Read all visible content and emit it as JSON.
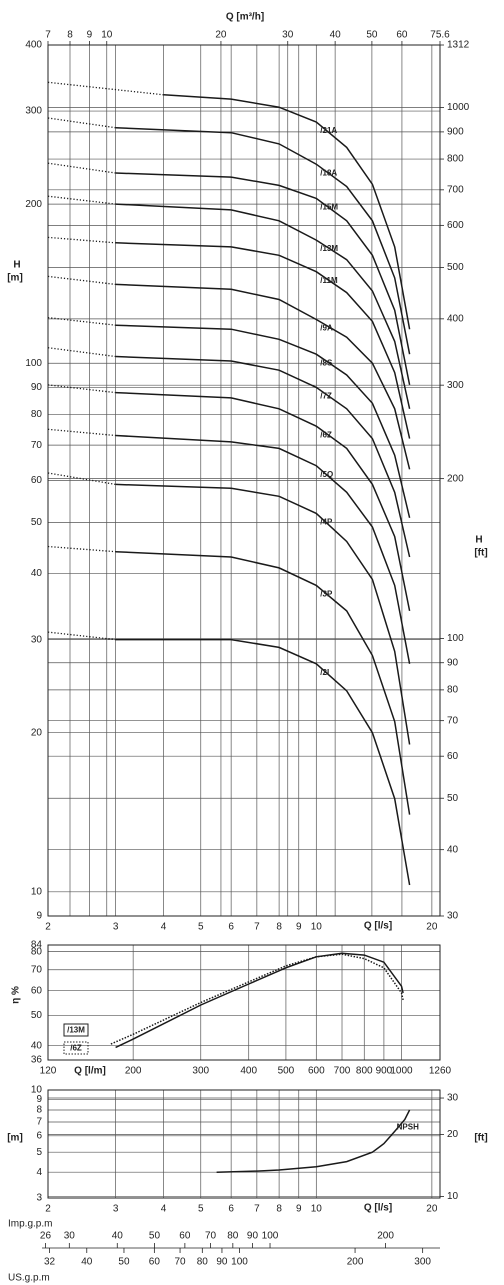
{
  "chart_data": [
    {
      "type": "line",
      "log_scale": true,
      "grid": true,
      "color": "#1a1a1a",
      "x_label": "Q [l/s]",
      "x2_label": "Q [m³/h]",
      "y_label": "H",
      "y_units": "[m]",
      "y2_label": "H",
      "y2_units": "[ft]",
      "xlim": [
        2,
        21
      ],
      "xticks": [
        2,
        3,
        4,
        5,
        6,
        7,
        8,
        9,
        10,
        20
      ],
      "x2lim": [
        7,
        75.6
      ],
      "x2ticks": [
        7,
        8,
        9,
        10,
        20,
        30,
        40,
        50,
        60,
        75.6
      ],
      "ylim": [
        9,
        400
      ],
      "yticks": [
        9,
        10,
        20,
        30,
        40,
        50,
        60,
        70,
        80,
        90,
        100,
        200,
        300,
        400
      ],
      "y2lim": [
        30,
        1312
      ],
      "y2ticks": [
        30,
        40,
        50,
        60,
        70,
        80,
        90,
        100,
        200,
        300,
        400,
        500,
        600,
        700,
        800,
        900,
        1000,
        1312
      ],
      "series": [
        {
          "name": "/21A",
          "dotted_x": [
            2,
            4
          ],
          "dotted_values": [
            340,
            322
          ],
          "x": [
            4,
            6,
            8,
            10,
            12,
            14,
            16,
            17.5
          ],
          "values": [
            322,
            316,
            305,
            286,
            256,
            218,
            166,
            116
          ]
        },
        {
          "name": "/18A",
          "dotted_x": [
            2,
            3
          ],
          "dotted_values": [
            291,
            279
          ],
          "x": [
            3,
            6,
            8,
            10,
            12,
            14,
            16,
            17.5
          ],
          "values": [
            279,
            273,
            260,
            238,
            216,
            186,
            145,
            104
          ]
        },
        {
          "name": "/15M",
          "dotted_x": [
            2,
            3
          ],
          "dotted_values": [
            239,
            229
          ],
          "x": [
            3,
            6,
            8,
            10,
            12,
            14,
            16,
            17.5
          ],
          "values": [
            229,
            225,
            217,
            205,
            186,
            160,
            126,
            91
          ]
        },
        {
          "name": "/13M",
          "dotted_x": [
            2,
            3
          ],
          "dotted_values": [
            207,
            200
          ],
          "x": [
            3,
            6,
            8,
            10,
            12,
            14,
            16,
            17.5
          ],
          "values": [
            200,
            195,
            186,
            171,
            157,
            137,
            110,
            82
          ]
        },
        {
          "name": "/11M",
          "dotted_x": [
            2,
            3
          ],
          "dotted_values": [
            173,
            169
          ],
          "x": [
            3,
            6,
            8,
            10,
            12,
            14,
            16,
            17.5
          ],
          "values": [
            169,
            166,
            160,
            149,
            136,
            120,
            96,
            72
          ]
        },
        {
          "name": "/9A",
          "dotted_x": [
            2,
            3
          ],
          "dotted_values": [
            146,
            141
          ],
          "x": [
            3,
            6,
            8,
            10,
            12,
            14,
            16,
            17.5
          ],
          "values": [
            141,
            138,
            132,
            121,
            112,
            100,
            82,
            63
          ]
        },
        {
          "name": "/8S",
          "dotted_x": [
            2,
            3
          ],
          "dotted_values": [
            122,
            118
          ],
          "x": [
            3,
            6,
            8,
            10,
            12,
            14,
            16,
            17.5
          ],
          "values": [
            118,
            116,
            111,
            104,
            95,
            84,
            67,
            51
          ]
        },
        {
          "name": "/7Z",
          "dotted_x": [
            2,
            3
          ],
          "dotted_values": [
            107,
            103
          ],
          "x": [
            3,
            6,
            8,
            10,
            12,
            14,
            16,
            17.5
          ],
          "values": [
            103,
            101,
            97,
            90,
            82,
            72,
            57,
            43
          ]
        },
        {
          "name": "/6Z",
          "dotted_x": [
            2,
            3
          ],
          "dotted_values": [
            91,
            88
          ],
          "x": [
            3,
            6,
            8,
            10,
            12,
            14,
            16,
            17.5
          ],
          "values": [
            88,
            86,
            82,
            76,
            69,
            59,
            47,
            34
          ]
        },
        {
          "name": "/5Q",
          "dotted_x": [
            2,
            3
          ],
          "dotted_values": [
            75,
            73
          ],
          "x": [
            3,
            6,
            8,
            10,
            12,
            14,
            16,
            17.5
          ],
          "values": [
            73,
            71,
            69,
            64,
            57,
            49,
            38,
            27
          ]
        },
        {
          "name": "/4P",
          "dotted_x": [
            2,
            3
          ],
          "dotted_values": [
            62,
            59
          ],
          "x": [
            3,
            6,
            8,
            10,
            12,
            14,
            16,
            17.5
          ],
          "values": [
            59,
            58,
            56,
            52,
            46,
            39,
            28.5,
            19
          ]
        },
        {
          "name": "/3P",
          "dotted_x": [
            2,
            3
          ],
          "dotted_values": [
            45,
            44
          ],
          "x": [
            3,
            6,
            8,
            10,
            12,
            14,
            16,
            17.5
          ],
          "values": [
            44,
            43,
            41,
            38,
            34,
            28,
            21,
            14
          ]
        },
        {
          "name": "/2I",
          "dotted_x": [
            2,
            3
          ],
          "dotted_values": [
            31,
            30
          ],
          "x": [
            3,
            6,
            8,
            10,
            12,
            14,
            16,
            17.5
          ],
          "values": [
            30,
            30,
            29,
            27,
            24,
            20,
            15,
            10.3
          ]
        }
      ]
    },
    {
      "type": "line",
      "log_scale": true,
      "grid": true,
      "color": "#1a1a1a",
      "x_label": "Q [l/m]",
      "y_label": "η %",
      "xlim": [
        120,
        1260
      ],
      "xticks": [
        120,
        200,
        300,
        400,
        500,
        600,
        700,
        800,
        900,
        1000,
        1260
      ],
      "ylim": [
        36,
        84
      ],
      "yticks": [
        36,
        40,
        50,
        60,
        70,
        80,
        84
      ],
      "series": [
        {
          "name": "/13M",
          "line_style": "solid",
          "x": [
            180,
            200,
            300,
            400,
            500,
            600,
            700,
            800,
            900,
            1000,
            1010
          ],
          "values": [
            39.5,
            42,
            54,
            63,
            71,
            77,
            79,
            78,
            74,
            62,
            59
          ]
        },
        {
          "name": "/6Z",
          "line_style": "dotted",
          "x": [
            175,
            200,
            300,
            400,
            500,
            600,
            700,
            800,
            900,
            1000,
            1010
          ],
          "values": [
            40.5,
            43.5,
            55,
            64,
            72,
            77,
            78.5,
            76,
            71,
            59,
            56
          ]
        }
      ]
    },
    {
      "type": "line",
      "log_scale": true,
      "grid": true,
      "color": "#1a1a1a",
      "x_label": "Q [l/s]",
      "y_units": "[m]",
      "y2_units": "[ft]",
      "xlim": [
        2,
        21
      ],
      "xticks": [
        2,
        3,
        4,
        5,
        6,
        7,
        8,
        9,
        10,
        20
      ],
      "ylim": [
        3,
        10
      ],
      "yticks": [
        3,
        4,
        5,
        6,
        7,
        8,
        9,
        10
      ],
      "y2lim": [
        9.84,
        32.81
      ],
      "y2ticks": [
        10,
        20,
        30
      ],
      "series": [
        {
          "name": "NPSH",
          "line_style": "solid",
          "x": [
            5.5,
            7,
            8,
            10,
            12,
            14,
            15,
            16,
            17,
            17.5
          ],
          "values": [
            4.0,
            4.05,
            4.1,
            4.25,
            4.5,
            5.0,
            5.5,
            6.3,
            7.2,
            8.0
          ]
        }
      ]
    },
    {
      "type": "axis",
      "log_scale": true,
      "axes": [
        {
          "label": "Imp.g.p.m",
          "lim": [
            26.4,
            277.2
          ],
          "ticks": [
            26,
            30,
            40,
            50,
            60,
            70,
            80,
            90,
            100,
            200
          ]
        },
        {
          "label": "US.g.p.m",
          "lim": [
            31.7,
            332.9
          ],
          "ticks": [
            32,
            40,
            50,
            60,
            70,
            80,
            90,
            100,
            200,
            300
          ]
        }
      ]
    }
  ]
}
